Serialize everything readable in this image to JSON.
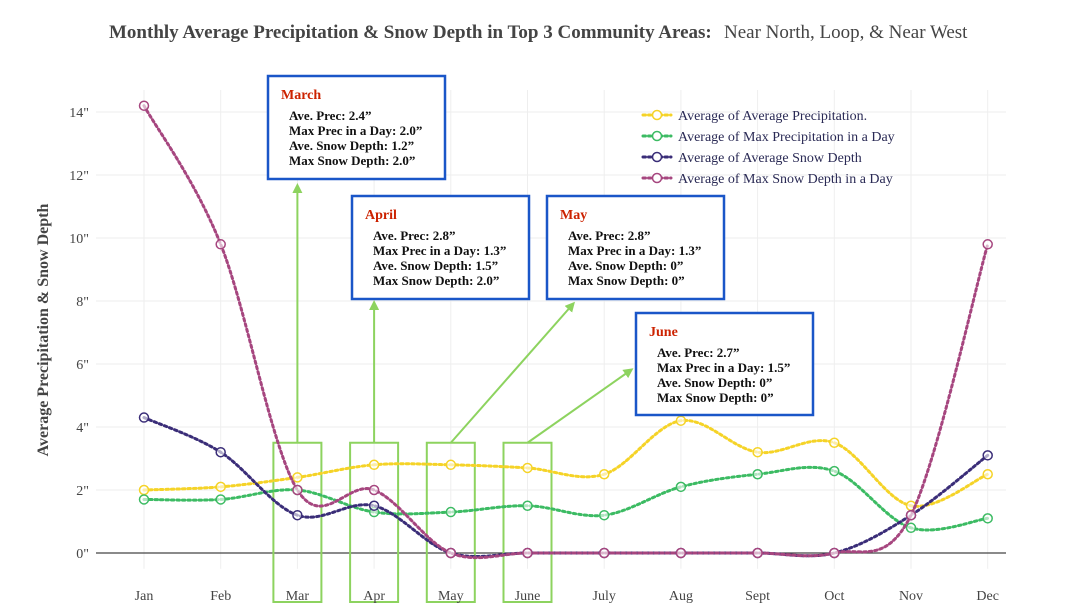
{
  "chart_data": {
    "type": "line",
    "title": "Monthly Average Precipitation & Snow Depth in Top 3 Community Areas:",
    "subtitle": "Near North, Loop, & Near West",
    "xlabel": "",
    "ylabel": "Average Precipitation & Snow Depth",
    "categories": [
      "Jan",
      "Feb",
      "Mar",
      "Apr",
      "May",
      "June",
      "July",
      "Aug",
      "Sept",
      "Oct",
      "Nov",
      "Dec"
    ],
    "ylim": [
      -0.5,
      14.7
    ],
    "yticks": [
      0,
      2,
      4,
      6,
      8,
      10,
      12,
      14
    ],
    "ytick_labels": [
      "0\"",
      "2\"",
      "4\"",
      "6\"",
      "8\"",
      "10\"",
      "12\"",
      "14\""
    ],
    "grid": true,
    "legend_position": "top-right",
    "series": [
      {
        "name": "Average of Average Precipitation.",
        "color": "#f5d327",
        "values": [
          2.0,
          2.1,
          2.4,
          2.8,
          2.8,
          2.7,
          2.5,
          4.2,
          3.2,
          3.5,
          1.5,
          2.5
        ]
      },
      {
        "name": "Average of Max Precipitation in a Day",
        "color": "#3cbb63",
        "values": [
          1.7,
          1.7,
          2.0,
          1.3,
          1.3,
          1.5,
          1.2,
          2.1,
          2.5,
          2.6,
          0.8,
          1.1
        ]
      },
      {
        "name": "Average of Average Snow Depth",
        "color": "#3a2d78",
        "values": [
          4.3,
          3.2,
          1.2,
          1.5,
          0.0,
          0.0,
          0.0,
          0.0,
          0.0,
          0.0,
          1.2,
          3.1
        ]
      },
      {
        "name": "Average of Max Snow Depth in a Day",
        "color": "#a6467f",
        "values": [
          14.2,
          9.8,
          2.0,
          2.0,
          0.0,
          0.0,
          0.0,
          0.0,
          0.0,
          0.0,
          1.2,
          9.8
        ]
      }
    ],
    "highlights": [
      "Mar",
      "Apr",
      "May",
      "June"
    ],
    "annotations": [
      {
        "month": "March",
        "target": "Mar",
        "lines": [
          "Ave. Prec: 2.4”",
          "Max Prec in a Day: 2.0”",
          "Ave. Snow Depth: 1.2”",
          "Max Snow Depth: 2.0”"
        ]
      },
      {
        "month": "April",
        "target": "Apr",
        "lines": [
          "Ave. Prec: 2.8”",
          "Max Prec in a Day: 1.3”",
          "Ave. Snow Depth: 1.5”",
          "Max Snow Depth: 2.0”"
        ]
      },
      {
        "month": "May",
        "target": "May",
        "lines": [
          "Ave. Prec: 2.8”",
          "Max Prec in a Day: 1.3”",
          "Ave. Snow Depth: 0”",
          "Max Snow Depth: 0”"
        ]
      },
      {
        "month": "June",
        "target": "June",
        "lines": [
          "Ave. Prec: 2.7”",
          "Max Prec in a Day: 1.5”",
          "Ave. Snow Depth: 0”",
          "Max Snow Depth: 0”"
        ]
      }
    ],
    "colors": {
      "highlight_box": "#8dd35f",
      "arrow": "#8dd35f",
      "annotation_border": "#1a56c8",
      "annotation_month": "#cc2200"
    }
  }
}
